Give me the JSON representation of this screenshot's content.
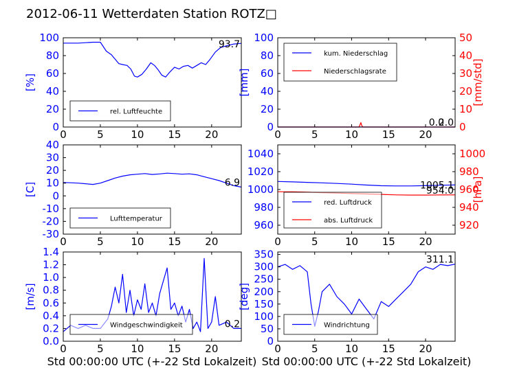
{
  "figure": {
    "title": "2012-06-11 Wetterdaten Station ROTZ□",
    "xlabel": "Std 00:00:00 UTC (+-22 Std Lokalzeit)",
    "colors": {
      "primary": "#0000ff",
      "secondary": "#ff0000",
      "axis": "#000000"
    }
  },
  "chart_data": [
    {
      "id": "humidity",
      "type": "line",
      "ylabel": "[%]",
      "xlim": [
        0,
        24
      ],
      "ylim": [
        0,
        100
      ],
      "xticks": [
        0,
        5,
        10,
        15,
        20
      ],
      "yticks": [
        0,
        20,
        40,
        60,
        80,
        100
      ],
      "grid": false,
      "legend_position": "lower-left",
      "annotation": "93.7",
      "series": [
        {
          "name": "rel. Luftfeuchte",
          "color": "#0000ff",
          "x": [
            0,
            2,
            4,
            5,
            5.4,
            5.8,
            6.5,
            7,
            7.5,
            8,
            8.6,
            9.1,
            9.6,
            10,
            10.6,
            11.2,
            11.8,
            12.3,
            12.8,
            13.3,
            13.8,
            14.3,
            15,
            15.6,
            16.2,
            16.8,
            17.4,
            18,
            18.6,
            19.2,
            19.8,
            20.5,
            21.2,
            22,
            23,
            24
          ],
          "y": [
            94,
            94,
            95,
            95,
            90,
            85,
            81,
            76,
            71,
            70,
            69,
            65,
            57,
            56,
            59,
            65,
            72,
            69,
            64,
            58,
            56,
            61,
            67,
            65,
            68,
            69,
            66,
            69,
            72,
            70,
            76,
            84,
            89,
            91,
            93,
            93.7
          ]
        }
      ]
    },
    {
      "id": "precipitation",
      "type": "line",
      "ylabel": "[mm]",
      "ylabel2": "[mm/std]",
      "xlim": [
        0,
        24
      ],
      "ylim": [
        0,
        100
      ],
      "ylim2": [
        0,
        50
      ],
      "xticks": [
        0,
        5,
        10,
        15,
        20
      ],
      "yticks": [
        0,
        20,
        40,
        60,
        80,
        100
      ],
      "yticks2": [
        0,
        10,
        20,
        30,
        40,
        50
      ],
      "grid": false,
      "legend_position": "upper-left",
      "annotations": [
        "0.0",
        "2.0"
      ],
      "series": [
        {
          "name": "kum. Niederschlag",
          "color": "#0000ff",
          "axis": "left",
          "x": [
            0,
            24
          ],
          "y": [
            0,
            0
          ]
        },
        {
          "name": "Niederschlagsrate",
          "color": "#ff0000",
          "axis": "right",
          "x": [
            0,
            11,
            11.15,
            11.25,
            11.35,
            11.5,
            12,
            24
          ],
          "y": [
            0,
            0,
            1.5,
            2.5,
            1.0,
            0,
            0,
            0
          ]
        }
      ]
    },
    {
      "id": "temperature",
      "type": "line",
      "ylabel": "[C]",
      "xlim": [
        0,
        24
      ],
      "ylim": [
        -30,
        40
      ],
      "xticks": [
        0,
        5,
        10,
        15,
        20
      ],
      "yticks": [
        -30,
        -20,
        -10,
        0,
        10,
        20,
        30,
        40
      ],
      "grid": false,
      "legend_position": "lower-left",
      "annotation": "6.9",
      "series": [
        {
          "name": "Lufttemperatur",
          "color": "#0000ff",
          "x": [
            0,
            1,
            2,
            3,
            4,
            5,
            6,
            7,
            8,
            9,
            10,
            11,
            12,
            13,
            14,
            15,
            16,
            17,
            18,
            19,
            20,
            21,
            22,
            23,
            24
          ],
          "y": [
            10.5,
            10.3,
            10,
            9.5,
            9,
            10,
            12,
            14,
            15.5,
            16.5,
            17,
            17.5,
            16.8,
            17.2,
            17.8,
            17.5,
            17,
            17.3,
            16.5,
            15,
            13.5,
            12,
            10,
            8,
            6.9
          ]
        }
      ]
    },
    {
      "id": "pressure",
      "type": "line",
      "ylabel2": "[hPa]",
      "xlim": [
        0,
        24
      ],
      "ylim": [
        950,
        1050
      ],
      "ylim2": [
        910,
        1010
      ],
      "xticks": [
        0,
        5,
        10,
        15,
        20
      ],
      "yticks": [
        960,
        980,
        1000,
        1020,
        1040
      ],
      "yticks2": [
        920,
        940,
        960,
        980,
        1000
      ],
      "grid": false,
      "legend_position": "lower-left",
      "annotations": [
        "1005.1",
        "954.0"
      ],
      "series": [
        {
          "name": "red. Luftdruck",
          "color": "#0000ff",
          "axis": "left",
          "x": [
            0,
            2,
            4,
            6,
            8,
            10,
            12,
            14,
            16,
            18,
            20,
            22,
            24
          ],
          "y": [
            1009,
            1008.5,
            1008,
            1007.5,
            1006.8,
            1006,
            1005,
            1004.2,
            1004,
            1004,
            1004.3,
            1004.8,
            1005.1
          ]
        },
        {
          "name": "abs. Luftdruck",
          "color": "#ff0000",
          "axis": "right",
          "x": [
            0,
            2,
            4,
            6,
            8,
            10,
            12,
            14,
            16,
            18,
            20,
            22,
            24
          ],
          "y": [
            957.5,
            957.5,
            957,
            956.5,
            956,
            955.5,
            955,
            954.5,
            954,
            953.8,
            953.8,
            953.9,
            954.0
          ]
        }
      ]
    },
    {
      "id": "windspeed",
      "type": "line",
      "ylabel": "[m/s]",
      "xlim": [
        0,
        24
      ],
      "ylim": [
        0,
        1.4
      ],
      "xticks": [
        0,
        5,
        10,
        15,
        20
      ],
      "yticks": [
        0.0,
        0.2,
        0.4,
        0.6,
        0.8,
        1.0,
        1.2,
        1.4
      ],
      "grid": false,
      "legend_position": "lower-left",
      "annotation": "0.2",
      "series": [
        {
          "name": "Windgeschwindigkeit",
          "color": "#0000ff",
          "x": [
            0,
            1,
            2,
            3,
            4,
            5,
            6,
            6.5,
            7,
            7.5,
            8,
            8.5,
            9,
            9.5,
            10,
            10.5,
            11,
            11.5,
            12,
            12.5,
            13,
            13.5,
            14,
            14.5,
            15,
            15.5,
            16,
            16.5,
            17,
            17.5,
            18,
            18.5,
            19,
            19.5,
            20,
            20.5,
            21,
            22,
            23,
            24
          ],
          "y": [
            0.15,
            0.25,
            0.2,
            0.25,
            0.2,
            0.2,
            0.35,
            0.55,
            0.85,
            0.6,
            1.05,
            0.45,
            0.8,
            0.4,
            0.65,
            0.5,
            0.9,
            0.45,
            0.6,
            0.4,
            0.75,
            0.95,
            1.15,
            0.5,
            0.6,
            0.4,
            0.55,
            0.3,
            0.5,
            0.2,
            0.3,
            0.15,
            1.3,
            0.2,
            0.3,
            0.7,
            0.25,
            0.3,
            0.2,
            0.2
          ]
        }
      ]
    },
    {
      "id": "winddirection",
      "type": "line",
      "ylabel": "[deg]",
      "xlim": [
        0,
        24
      ],
      "ylim": [
        0,
        360
      ],
      "xticks": [
        0,
        5,
        10,
        15,
        20
      ],
      "yticks": [
        0,
        50,
        100,
        150,
        200,
        250,
        300,
        350
      ],
      "grid": false,
      "legend_position": "lower-left",
      "annotation": "311.1",
      "series": [
        {
          "name": "Windrichtung",
          "color": "#0000ff",
          "x": [
            0,
            1,
            2,
            3,
            4,
            4.5,
            5,
            5.5,
            6,
            7,
            8,
            9,
            10,
            11,
            12,
            13,
            14,
            15,
            16,
            17,
            18,
            19,
            20,
            21,
            22,
            23,
            24
          ],
          "y": [
            300,
            310,
            290,
            305,
            280,
            150,
            60,
            120,
            200,
            230,
            180,
            150,
            110,
            170,
            130,
            90,
            160,
            140,
            170,
            200,
            230,
            280,
            300,
            290,
            310,
            305,
            311.1
          ]
        }
      ]
    }
  ]
}
